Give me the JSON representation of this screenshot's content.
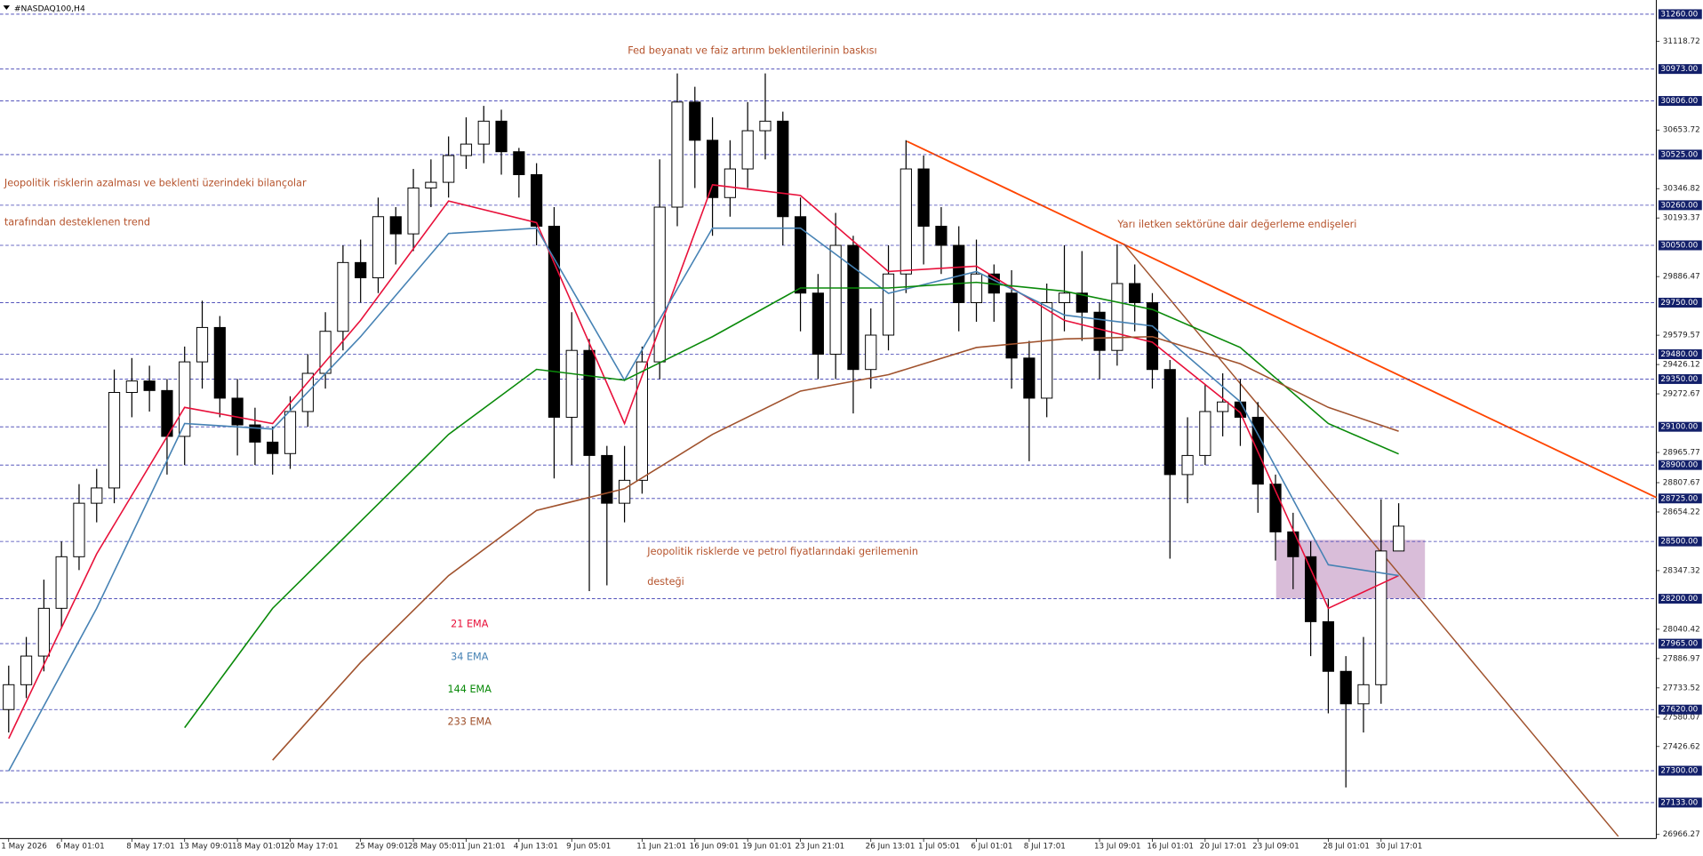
{
  "chart_data": {
    "type": "candlestick",
    "title": "#NASDAQ100,H4",
    "categories": [
      "1 May 2026",
      null,
      null,
      "6 May 01:01",
      null,
      null,
      null,
      "8 May 17:01",
      null,
      null,
      "13 May 09:01",
      null,
      null,
      "18 May 01:01",
      null,
      null,
      "20 May 17:01",
      null,
      null,
      null,
      "25 May 09:01",
      null,
      null,
      "28 May 05:01",
      null,
      null,
      "1 Jun 21:01",
      null,
      null,
      "4 Jun 13:01",
      null,
      null,
      "9 Jun 05:01",
      null,
      null,
      null,
      "11 Jun 21:01",
      null,
      null,
      "16 Jun 09:01",
      null,
      null,
      "19 Jun 01:01",
      null,
      null,
      "23 Jun 21:01",
      null,
      null,
      null,
      "26 Jun 13:01",
      null,
      null,
      "1 Jul 05:01",
      null,
      null,
      "6 Jul 01:01",
      null,
      null,
      "8 Jul 17:01",
      null,
      null,
      null,
      "13 Jul 09:01",
      null,
      null,
      "16 Jul 01:01",
      null,
      null,
      "20 Jul 17:01",
      null,
      null,
      "23 Jul 09:01",
      null,
      null,
      null,
      "28 Jul 01:01",
      null,
      null,
      "30 Jul 17:01",
      null
    ],
    "open": [
      27620,
      27750,
      27900,
      28150,
      28420,
      28700,
      28780,
      29280,
      29340,
      29290,
      29050,
      29440,
      29620,
      29250,
      29110,
      29020,
      28960,
      29180,
      29380,
      29600,
      29960,
      29880,
      30200,
      30110,
      30350,
      30380,
      30520,
      30580,
      30700,
      30540,
      30420,
      30150,
      29150,
      29500,
      28950,
      28700,
      28820,
      29440,
      30250,
      30800,
      30600,
      30300,
      30450,
      30650,
      30700,
      30200,
      29800,
      29480,
      30050,
      29400,
      29580,
      29900,
      30450,
      30150,
      30050,
      29750,
      29900,
      29800,
      29460,
      29250,
      29750,
      29800,
      29700,
      29500,
      29850,
      29750,
      29400,
      28850,
      28950,
      29180,
      29230,
      29150,
      28800,
      28550,
      28420,
      28080,
      27820,
      27650,
      27750,
      28450
    ],
    "high": [
      27850,
      28000,
      28300,
      28500,
      28800,
      28880,
      29400,
      29460,
      29420,
      29350,
      29520,
      29760,
      29680,
      29350,
      29200,
      29100,
      29260,
      29480,
      29700,
      30050,
      30080,
      30300,
      30250,
      30450,
      30500,
      30620,
      30720,
      30780,
      30760,
      30560,
      30480,
      30250,
      29700,
      29560,
      29000,
      29000,
      29520,
      30500,
      30950,
      30880,
      30720,
      30600,
      30800,
      30950,
      30750,
      30300,
      29900,
      30220,
      30100,
      29720,
      30050,
      30600,
      30520,
      30250,
      30150,
      30080,
      29950,
      29920,
      29550,
      29850,
      30050,
      30020,
      29750,
      30055,
      29950,
      29800,
      29450,
      29150,
      29320,
      29380,
      29350,
      29230,
      28850,
      28650,
      28500,
      28200,
      27900,
      28000,
      28720,
      28700
    ],
    "low": [
      27500,
      27680,
      27820,
      28050,
      28350,
      28600,
      28700,
      29150,
      29180,
      28850,
      28900,
      29300,
      29150,
      28950,
      28900,
      28850,
      28880,
      29100,
      29300,
      29500,
      29750,
      29800,
      29950,
      30020,
      30250,
      30300,
      30450,
      30480,
      30420,
      30300,
      30050,
      28830,
      28900,
      28240,
      28270,
      28600,
      28750,
      29350,
      30150,
      30350,
      30100,
      30200,
      30350,
      30500,
      30050,
      29600,
      29350,
      29350,
      29170,
      29300,
      29500,
      29800,
      29950,
      29900,
      29600,
      29650,
      29650,
      29300,
      28920,
      29150,
      29600,
      29550,
      29350,
      29420,
      29600,
      29300,
      28410,
      28700,
      28900,
      29050,
      29000,
      28650,
      28400,
      28250,
      27900,
      27600,
      27212,
      27500,
      27650,
      28450
    ],
    "close": [
      27750,
      27900,
      28150,
      28420,
      28700,
      28780,
      29280,
      29340,
      29290,
      29050,
      29440,
      29620,
      29250,
      29110,
      29020,
      28960,
      29180,
      29380,
      29600,
      29960,
      29880,
      30200,
      30110,
      30350,
      30380,
      30520,
      30580,
      30700,
      30540,
      30420,
      30150,
      29150,
      29500,
      28950,
      28700,
      28820,
      29440,
      30250,
      30800,
      30600,
      30300,
      30450,
      30650,
      30700,
      30200,
      29800,
      29480,
      30050,
      29400,
      29580,
      29900,
      30450,
      30150,
      30050,
      29750,
      29900,
      29800,
      29460,
      29250,
      29750,
      29800,
      29700,
      29500,
      29850,
      29750,
      29400,
      28850,
      28950,
      29180,
      29230,
      29150,
      28800,
      28550,
      28420,
      28080,
      27820,
      27650,
      27750,
      28450,
      28580
    ],
    "indicators": [
      {
        "name": "21 EMA",
        "color": "#e8103a",
        "x": [
          0,
          5,
          10,
          15,
          20,
          25,
          30,
          35,
          40,
          45,
          50,
          55,
          60,
          65,
          70,
          75,
          79
        ],
        "values": [
          27468,
          28435,
          29202,
          29117,
          29657,
          30282,
          30169,
          29117,
          30367,
          30311,
          29913,
          29941,
          29657,
          29543,
          29174,
          28150,
          28321
        ]
      },
      {
        "name": "34 EMA",
        "color": "#4682b4",
        "x": [
          0,
          5,
          10,
          15,
          20,
          25,
          30,
          35,
          40,
          45,
          50,
          55,
          60,
          65,
          70,
          75,
          79
        ],
        "values": [
          27298,
          28150,
          29117,
          29088,
          29572,
          30112,
          30140,
          29344,
          30140,
          30140,
          29799,
          29913,
          29685,
          29628,
          29231,
          28378,
          28321
        ]
      },
      {
        "name": "144 EMA",
        "color": "#0a8a0a",
        "x": [
          0,
          5,
          10,
          15,
          20,
          25,
          30,
          35,
          40,
          45,
          50,
          55,
          60,
          65,
          70,
          75,
          79
        ],
        "values": [
          null,
          null,
          27525,
          28150,
          28605,
          29060,
          29401,
          29344,
          29572,
          29827,
          29827,
          29856,
          29810,
          29714,
          29515,
          29117,
          28958
        ]
      },
      {
        "name": "233 EMA",
        "color": "#a0522d",
        "x": [
          0,
          5,
          10,
          15,
          20,
          25,
          30,
          35,
          40,
          45,
          50,
          55,
          60,
          65,
          70,
          75,
          79
        ],
        "values": [
          null,
          null,
          null,
          27355,
          27866,
          28321,
          28662,
          28776,
          29060,
          29287,
          29373,
          29515,
          29560,
          29572,
          29430,
          29202,
          29077
        ]
      }
    ],
    "ylim": [
      26956,
      31334
    ],
    "yticks": [
      31118.72,
      30653.72,
      30346.82,
      30193.37,
      29886.47,
      29579.57,
      29426.12,
      29272.67,
      28965.77,
      28807.67,
      28654.22,
      28347.32,
      28040.42,
      27886.97,
      27733.52,
      27580.07,
      27426.62,
      26966.27
    ],
    "levels": [
      {
        "value": 31260,
        "label": "31260.00"
      },
      {
        "value": 30973,
        "label": "30973.00"
      },
      {
        "value": 30806,
        "label": "30806.00"
      },
      {
        "value": 30525,
        "label": "30525.00"
      },
      {
        "value": 30260,
        "label": "30260.00"
      },
      {
        "value": 30050,
        "label": "30050.00"
      },
      {
        "value": 29750,
        "label": "29750.00"
      },
      {
        "value": 29480,
        "label": "29480.00"
      },
      {
        "value": 29350,
        "label": "29350.00"
      },
      {
        "value": 29100,
        "label": "29100.00"
      },
      {
        "value": 28900,
        "label": "28900.00"
      },
      {
        "value": 28725,
        "label": "28725.00"
      },
      {
        "value": 28500,
        "label": "28500.00"
      },
      {
        "value": 28200,
        "label": "28200.00"
      },
      {
        "value": 27965,
        "label": "27965.00"
      },
      {
        "value": 27620,
        "label": "27620.00"
      },
      {
        "value": 27300,
        "label": "27300.00"
      },
      {
        "value": 27133,
        "label": "27133.00"
      }
    ],
    "level_color": "#3a3ab0",
    "annotations": [
      "Fed beyanatı ve faiz artırım beklentilerinin baskısı",
      "Jeopolitik risklerin azalması ve beklenti üzerindeki bilançolar",
      "tarafından desteklenen trend",
      "Yarı iletken sektörüne dair değerleme endişeleri",
      "Jeopolitik risklerde ve petrol fiyatlarındaki gerilemenin",
      "desteği"
    ]
  }
}
